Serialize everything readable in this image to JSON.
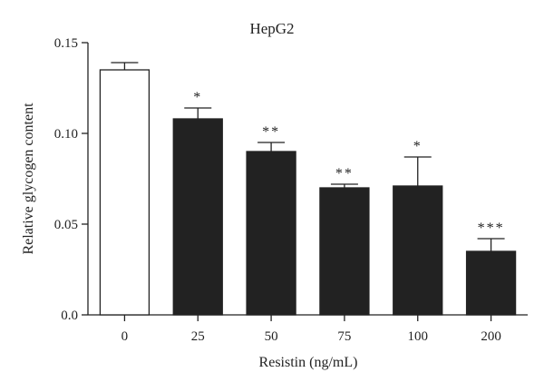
{
  "chart_data": {
    "type": "bar",
    "title": "HepG2",
    "xlabel": "Resistin (ng/mL)",
    "ylabel": "Relative glycogen content",
    "ylim": [
      0,
      0.15
    ],
    "yticks": [
      0.0,
      0.05,
      0.1,
      0.15
    ],
    "ytick_labels": [
      "0.0",
      "0.05",
      "0.10",
      "0.15"
    ],
    "categories": [
      "0",
      "25",
      "50",
      "75",
      "100",
      "200"
    ],
    "values": [
      0.135,
      0.108,
      0.09,
      0.07,
      0.071,
      0.035
    ],
    "errors": [
      0.004,
      0.006,
      0.005,
      0.002,
      0.016,
      0.007
    ],
    "significance": [
      "",
      "*",
      "**",
      "**",
      "*",
      "***"
    ],
    "bar_fills": [
      "#ffffff",
      "#222222",
      "#222222",
      "#222222",
      "#222222",
      "#222222"
    ],
    "grid": false,
    "legend": "none"
  },
  "colors": {
    "axis": "#222222",
    "bar_outline": "#222222",
    "text": "#222222"
  }
}
